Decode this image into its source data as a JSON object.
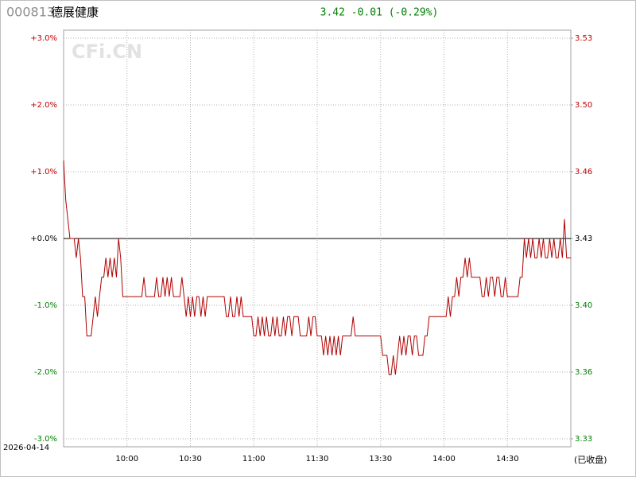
{
  "chart_data": {
    "type": "line",
    "code": "000813",
    "name": "德展健康",
    "quote": "3.42 -0.01 (-0.29%)",
    "watermark": "CFi.CN",
    "date": "2026-04-14",
    "status": "(已收盘)",
    "up_color": "#c00000",
    "down_color": "#008000",
    "flat_color": "#000000",
    "quote_color": "#008000",
    "grid": true,
    "xlim": [
      0,
      240
    ],
    "xticks": [
      {
        "value": 30,
        "label": "10:00"
      },
      {
        "value": 60,
        "label": "10:30"
      },
      {
        "value": 90,
        "label": "11:00"
      },
      {
        "value": 120,
        "label": "11:30"
      },
      {
        "value": 150,
        "label": "13:30"
      },
      {
        "value": 180,
        "label": "14:00"
      },
      {
        "value": 210,
        "label": "14:30"
      }
    ],
    "ylim": [
      -3,
      3
    ],
    "yticks": [
      {
        "value": 3,
        "label": "+3.0%"
      },
      {
        "value": 2,
        "label": "+2.0%"
      },
      {
        "value": 1,
        "label": "+1.0%"
      },
      {
        "value": 0,
        "label": "+0.0%"
      },
      {
        "value": -1,
        "label": "-1.0%"
      },
      {
        "value": -2,
        "label": "-2.0%"
      },
      {
        "value": -3,
        "label": "-3.0%"
      }
    ],
    "y2lim": [
      3.3271,
      3.5329
    ],
    "y2ticks": [
      {
        "value": 3.5329,
        "label": "3.53"
      },
      {
        "value": 3.4986,
        "label": "3.50"
      },
      {
        "value": 3.4643,
        "label": "3.46"
      },
      {
        "value": 3.43,
        "label": "3.43"
      },
      {
        "value": 3.3957,
        "label": "3.40"
      },
      {
        "value": 3.3614,
        "label": "3.36"
      },
      {
        "value": 3.3271,
        "label": "3.33"
      }
    ],
    "series": [
      {
        "color": "#b00000",
        "x": [
          0,
          1,
          2,
          3,
          4,
          5,
          6,
          7,
          8,
          9,
          10,
          11,
          12,
          13,
          14,
          15,
          16,
          17,
          18,
          19,
          20,
          21,
          22,
          23,
          24,
          25,
          26,
          27,
          28,
          29,
          30,
          31,
          32,
          33,
          34,
          35,
          36,
          37,
          38,
          39,
          40,
          41,
          42,
          43,
          44,
          45,
          46,
          47,
          48,
          49,
          50,
          51,
          52,
          53,
          54,
          55,
          56,
          57,
          58,
          59,
          60,
          61,
          62,
          63,
          64,
          65,
          66,
          67,
          68,
          69,
          70,
          71,
          72,
          73,
          74,
          75,
          76,
          77,
          78,
          79,
          80,
          81,
          82,
          83,
          84,
          85,
          86,
          87,
          88,
          89,
          90,
          91,
          92,
          93,
          94,
          95,
          96,
          97,
          98,
          99,
          100,
          101,
          102,
          103,
          104,
          105,
          106,
          107,
          108,
          109,
          110,
          111,
          112,
          113,
          114,
          115,
          116,
          117,
          118,
          119,
          120,
          121,
          122,
          123,
          124,
          125,
          126,
          127,
          128,
          129,
          130,
          131,
          132,
          133,
          134,
          135,
          136,
          137,
          138,
          139,
          140,
          141,
          142,
          143,
          144,
          145,
          146,
          147,
          148,
          149,
          150,
          151,
          152,
          153,
          154,
          155,
          156,
          157,
          158,
          159,
          160,
          161,
          162,
          163,
          164,
          165,
          166,
          167,
          168,
          169,
          170,
          171,
          172,
          173,
          174,
          175,
          176,
          177,
          178,
          179,
          180,
          181,
          182,
          183,
          184,
          185,
          186,
          187,
          188,
          189,
          190,
          191,
          192,
          193,
          194,
          195,
          196,
          197,
          198,
          199,
          200,
          201,
          202,
          203,
          204,
          205,
          206,
          207,
          208,
          209,
          210,
          211,
          212,
          213,
          214,
          215,
          216,
          217,
          218,
          219,
          220,
          221,
          222,
          223,
          224,
          225,
          226,
          227,
          228,
          229,
          230,
          231,
          232,
          233,
          234,
          235,
          236,
          237,
          238,
          239,
          240
        ],
        "values": [
          1.17,
          0.58,
          0.29,
          0,
          0,
          0,
          -0.29,
          0,
          -0.29,
          -0.87,
          -0.87,
          -1.46,
          -1.46,
          -1.46,
          -1.17,
          -0.87,
          -1.17,
          -0.87,
          -0.58,
          -0.58,
          -0.29,
          -0.58,
          -0.29,
          -0.58,
          -0.29,
          -0.58,
          0,
          -0.29,
          -0.87,
          -0.87,
          -0.87,
          -0.87,
          -0.87,
          -0.87,
          -0.87,
          -0.87,
          -0.87,
          -0.87,
          -0.58,
          -0.87,
          -0.87,
          -0.87,
          -0.87,
          -0.87,
          -0.58,
          -0.87,
          -0.87,
          -0.58,
          -0.87,
          -0.58,
          -0.87,
          -0.58,
          -0.87,
          -0.87,
          -0.87,
          -0.87,
          -0.58,
          -0.87,
          -1.17,
          -0.87,
          -1.17,
          -0.87,
          -1.17,
          -0.87,
          -0.87,
          -1.17,
          -0.87,
          -1.17,
          -0.87,
          -0.87,
          -0.87,
          -0.87,
          -0.87,
          -0.87,
          -0.87,
          -0.87,
          -0.87,
          -1.17,
          -1.17,
          -0.87,
          -1.17,
          -1.17,
          -0.87,
          -1.17,
          -0.87,
          -1.17,
          -1.17,
          -1.17,
          -1.17,
          -1.17,
          -1.46,
          -1.46,
          -1.17,
          -1.46,
          -1.17,
          -1.46,
          -1.17,
          -1.46,
          -1.46,
          -1.17,
          -1.46,
          -1.17,
          -1.46,
          -1.46,
          -1.17,
          -1.46,
          -1.17,
          -1.17,
          -1.46,
          -1.17,
          -1.17,
          -1.17,
          -1.46,
          -1.46,
          -1.46,
          -1.46,
          -1.17,
          -1.46,
          -1.17,
          -1.17,
          -1.46,
          -1.46,
          -1.46,
          -1.75,
          -1.46,
          -1.75,
          -1.46,
          -1.75,
          -1.46,
          -1.75,
          -1.46,
          -1.75,
          -1.46,
          -1.46,
          -1.46,
          -1.46,
          -1.46,
          -1.17,
          -1.46,
          -1.46,
          -1.46,
          -1.46,
          -1.46,
          -1.46,
          -1.46,
          -1.46,
          -1.46,
          -1.46,
          -1.46,
          -1.46,
          -1.46,
          -1.75,
          -1.75,
          -1.75,
          -2.04,
          -2.04,
          -1.75,
          -2.04,
          -1.75,
          -1.46,
          -1.75,
          -1.46,
          -1.75,
          -1.46,
          -1.46,
          -1.75,
          -1.46,
          -1.46,
          -1.75,
          -1.75,
          -1.75,
          -1.46,
          -1.46,
          -1.17,
          -1.17,
          -1.17,
          -1.17,
          -1.17,
          -1.17,
          -1.17,
          -1.17,
          -1.17,
          -0.87,
          -1.17,
          -0.87,
          -0.87,
          -0.58,
          -0.87,
          -0.58,
          -0.58,
          -0.29,
          -0.58,
          -0.29,
          -0.58,
          -0.58,
          -0.58,
          -0.58,
          -0.58,
          -0.87,
          -0.87,
          -0.58,
          -0.87,
          -0.58,
          -0.58,
          -0.87,
          -0.58,
          -0.58,
          -0.87,
          -0.87,
          -0.58,
          -0.87,
          -0.87,
          -0.87,
          -0.87,
          -0.87,
          -0.87,
          -0.58,
          -0.58,
          0,
          -0.29,
          0,
          -0.29,
          0,
          -0.29,
          -0.29,
          0,
          -0.29,
          0,
          -0.29,
          -0.29,
          0,
          -0.29,
          0,
          -0.29,
          -0.29,
          0,
          -0.29,
          0.29,
          -0.29,
          -0.29,
          -0.29
        ]
      }
    ]
  }
}
